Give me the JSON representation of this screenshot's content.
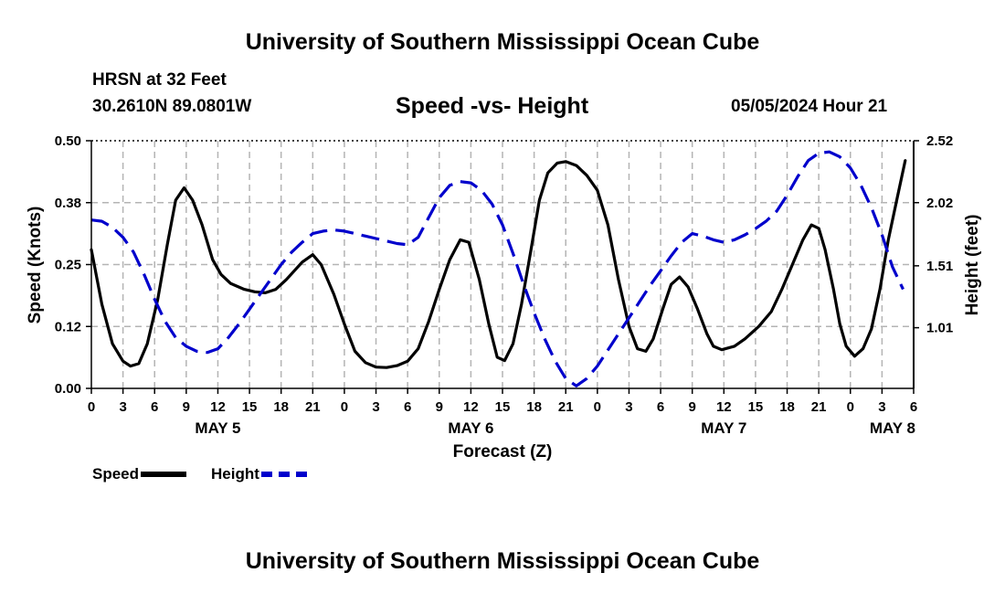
{
  "header": {
    "title": "University of Southern Mississippi Ocean Cube",
    "station_name": "HRSN at 32 Feet",
    "station_coords": "30.2610N  89.0801W",
    "chart_title": "Speed -vs- Height",
    "run_time": "05/05/2024 Hour 21"
  },
  "footer": {
    "title": "University of Southern Mississippi Ocean Cube"
  },
  "legend": {
    "speed_label": "Speed",
    "height_label": "Height"
  },
  "colors": {
    "speed": "#000000",
    "height": "#0000cc",
    "grid": "#b4b4b4"
  },
  "chart_data": {
    "type": "line",
    "title": "Speed -vs- Height",
    "xlabel": "Forecast (Z)",
    "ylabel": "Speed (Knots)",
    "y2label": "Height (feet)",
    "xlim": [
      0,
      78
    ],
    "ylim": [
      0,
      0.5
    ],
    "y2lim": [
      0.52,
      2.52
    ],
    "y_ticks": [
      "0.00",
      "0.12",
      "0.25",
      "0.38",
      "0.50"
    ],
    "y2_ticks": [
      "1.01",
      "1.51",
      "2.02",
      "2.52"
    ],
    "x_tick_labels": [
      "0",
      "3",
      "6",
      "9",
      "12",
      "15",
      "18",
      "21",
      "0",
      "3",
      "6",
      "9",
      "12",
      "15",
      "18",
      "21",
      "0",
      "3",
      "6",
      "9",
      "12",
      "15",
      "18",
      "21",
      "0",
      "3",
      "6"
    ],
    "date_labels": [
      {
        "label": "MAY 5",
        "x": 12
      },
      {
        "label": "MAY 6",
        "x": 36
      },
      {
        "label": "MAY 7",
        "x": 60
      },
      {
        "label": "MAY 8",
        "x": 76
      }
    ],
    "grid": true,
    "series": [
      {
        "name": "Speed",
        "axis": "left",
        "style": "solid",
        "points": [
          [
            0,
            0.28
          ],
          [
            1,
            0.17
          ],
          [
            2,
            0.09
          ],
          [
            3,
            0.055
          ],
          [
            3.7,
            0.045
          ],
          [
            4.5,
            0.05
          ],
          [
            5.3,
            0.09
          ],
          [
            6.3,
            0.18
          ],
          [
            7.2,
            0.29
          ],
          [
            8,
            0.38
          ],
          [
            8.8,
            0.405
          ],
          [
            9.6,
            0.38
          ],
          [
            10.5,
            0.33
          ],
          [
            11.5,
            0.26
          ],
          [
            12.3,
            0.23
          ],
          [
            13.2,
            0.212
          ],
          [
            14.5,
            0.2
          ],
          [
            15.5,
            0.195
          ],
          [
            16.5,
            0.193
          ],
          [
            17.5,
            0.2
          ],
          [
            18.5,
            0.22
          ],
          [
            20,
            0.255
          ],
          [
            21,
            0.27
          ],
          [
            21.8,
            0.25
          ],
          [
            23,
            0.19
          ],
          [
            24,
            0.13
          ],
          [
            25,
            0.075
          ],
          [
            26,
            0.052
          ],
          [
            27,
            0.043
          ],
          [
            28,
            0.042
          ],
          [
            29,
            0.046
          ],
          [
            30,
            0.055
          ],
          [
            31,
            0.08
          ],
          [
            32,
            0.135
          ],
          [
            33,
            0.2
          ],
          [
            34,
            0.26
          ],
          [
            35,
            0.3
          ],
          [
            35.8,
            0.295
          ],
          [
            36.8,
            0.22
          ],
          [
            37.7,
            0.13
          ],
          [
            38.5,
            0.063
          ],
          [
            39.2,
            0.056
          ],
          [
            40,
            0.09
          ],
          [
            40.8,
            0.17
          ],
          [
            41.7,
            0.28
          ],
          [
            42.5,
            0.38
          ],
          [
            43.3,
            0.435
          ],
          [
            44.2,
            0.455
          ],
          [
            45,
            0.458
          ],
          [
            46,
            0.45
          ],
          [
            47,
            0.43
          ],
          [
            48,
            0.4
          ],
          [
            49,
            0.33
          ],
          [
            50,
            0.22
          ],
          [
            51,
            0.125
          ],
          [
            51.8,
            0.08
          ],
          [
            52.6,
            0.075
          ],
          [
            53.3,
            0.1
          ],
          [
            54.2,
            0.16
          ],
          [
            55,
            0.21
          ],
          [
            55.8,
            0.225
          ],
          [
            56.6,
            0.205
          ],
          [
            57.5,
            0.16
          ],
          [
            58.4,
            0.11
          ],
          [
            59,
            0.085
          ],
          [
            59.8,
            0.078
          ],
          [
            61,
            0.085
          ],
          [
            62,
            0.1
          ],
          [
            63.3,
            0.125
          ],
          [
            64.5,
            0.155
          ],
          [
            65.5,
            0.2
          ],
          [
            66.5,
            0.25
          ],
          [
            67.5,
            0.3
          ],
          [
            68.3,
            0.33
          ],
          [
            69,
            0.323
          ],
          [
            69.6,
            0.28
          ],
          [
            70.4,
            0.2
          ],
          [
            71,
            0.13
          ],
          [
            71.6,
            0.085
          ],
          [
            72.4,
            0.065
          ],
          [
            73.2,
            0.08
          ],
          [
            74,
            0.12
          ],
          [
            74.8,
            0.2
          ],
          [
            75.6,
            0.3
          ],
          [
            76.4,
            0.38
          ],
          [
            77.2,
            0.46
          ]
        ]
      },
      {
        "name": "Height",
        "axis": "right",
        "style": "dashed",
        "points": [
          [
            0,
            1.88
          ],
          [
            1,
            1.87
          ],
          [
            2,
            1.82
          ],
          [
            3,
            1.74
          ],
          [
            4,
            1.62
          ],
          [
            5,
            1.44
          ],
          [
            6,
            1.24
          ],
          [
            7,
            1.06
          ],
          [
            8,
            0.93
          ],
          [
            9,
            0.86
          ],
          [
            10,
            0.82
          ],
          [
            11,
            0.81
          ],
          [
            12,
            0.84
          ],
          [
            13,
            0.93
          ],
          [
            14,
            1.04
          ],
          [
            15,
            1.16
          ],
          [
            16,
            1.28
          ],
          [
            17,
            1.4
          ],
          [
            18,
            1.52
          ],
          [
            19,
            1.62
          ],
          [
            20,
            1.7
          ],
          [
            21,
            1.77
          ],
          [
            22,
            1.79
          ],
          [
            23,
            1.8
          ],
          [
            24,
            1.79
          ],
          [
            25,
            1.77
          ],
          [
            26,
            1.75
          ],
          [
            27,
            1.73
          ],
          [
            28,
            1.71
          ],
          [
            29,
            1.69
          ],
          [
            30,
            1.68
          ],
          [
            31,
            1.74
          ],
          [
            32,
            1.9
          ],
          [
            33,
            2.06
          ],
          [
            34,
            2.16
          ],
          [
            35,
            2.19
          ],
          [
            36,
            2.18
          ],
          [
            37,
            2.12
          ],
          [
            38,
            2.01
          ],
          [
            39,
            1.84
          ],
          [
            40,
            1.61
          ],
          [
            41,
            1.36
          ],
          [
            42,
            1.13
          ],
          [
            43,
            0.92
          ],
          [
            44,
            0.74
          ],
          [
            45,
            0.6
          ],
          [
            46,
            0.54
          ],
          [
            47,
            0.6
          ],
          [
            48,
            0.7
          ],
          [
            49,
            0.83
          ],
          [
            50,
            0.96
          ],
          [
            51,
            1.09
          ],
          [
            52,
            1.22
          ],
          [
            53,
            1.35
          ],
          [
            54,
            1.47
          ],
          [
            55,
            1.59
          ],
          [
            56,
            1.7
          ],
          [
            57,
            1.77
          ],
          [
            58,
            1.75
          ],
          [
            59,
            1.72
          ],
          [
            60,
            1.7
          ],
          [
            61,
            1.72
          ],
          [
            62,
            1.76
          ],
          [
            63,
            1.81
          ],
          [
            64,
            1.87
          ],
          [
            65,
            1.95
          ],
          [
            66,
            2.08
          ],
          [
            67,
            2.23
          ],
          [
            68,
            2.36
          ],
          [
            69,
            2.42
          ],
          [
            70,
            2.43
          ],
          [
            71,
            2.39
          ],
          [
            72,
            2.3
          ],
          [
            73,
            2.16
          ],
          [
            74,
            1.98
          ],
          [
            75,
            1.76
          ],
          [
            76,
            1.5
          ],
          [
            77,
            1.32
          ]
        ]
      }
    ]
  }
}
